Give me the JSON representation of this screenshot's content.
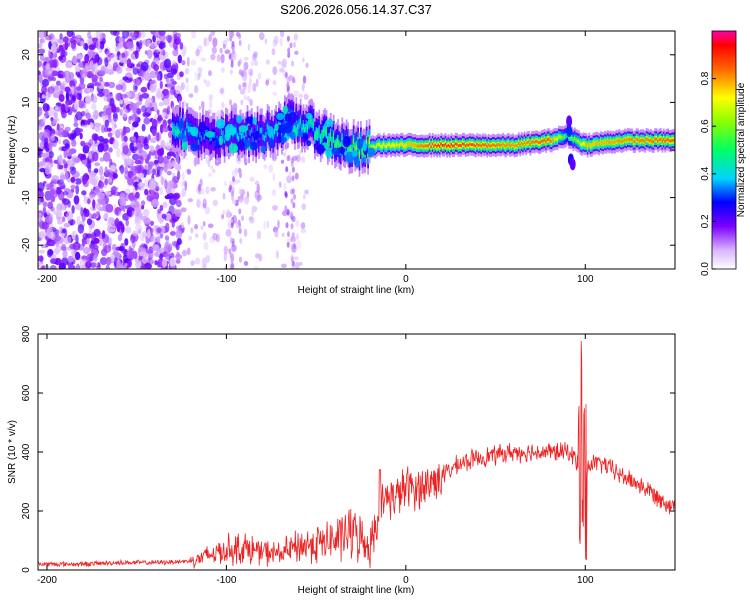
{
  "title": "S206.2026.056.14.37.C37",
  "chart_data": [
    {
      "type": "heatmap",
      "name": "spectrogram",
      "xlabel": "Height of straight line (km)",
      "ylabel": "Frequency (Hz)",
      "xlim": [
        -205,
        150
      ],
      "ylim": [
        -25,
        25
      ],
      "xticks": [
        -200,
        -100,
        0,
        100
      ],
      "xtick_labels": [
        "-200",
        "-100",
        "0",
        "100"
      ],
      "yticks": [
        -20,
        -10,
        0,
        10,
        20
      ],
      "ytick_labels": [
        "-20",
        "-10",
        "0",
        "10",
        "20"
      ],
      "colorbar": {
        "label": "Normalized spectral amplitude",
        "range": [
          0,
          1
        ],
        "ticks": [
          0.0,
          0.2,
          0.4,
          0.6,
          0.8
        ],
        "tick_labels": [
          "0.0",
          "0.2",
          "0.4",
          "0.6",
          "0.8"
        ]
      },
      "ridge": {
        "description_points_x": [
          -128,
          -115,
          -105,
          -95,
          -85,
          -75,
          -65,
          -55,
          -45,
          -35,
          -25,
          -15,
          0,
          20,
          40,
          60,
          80,
          90,
          100,
          120,
          150
        ],
        "frequency_hz": [
          5,
          3,
          2,
          4,
          3,
          4,
          6,
          5,
          3,
          1,
          0,
          1,
          1,
          1,
          1,
          1,
          2,
          3,
          1,
          2,
          2
        ],
        "peak_amplitude": [
          0.45,
          0.35,
          0.35,
          0.4,
          0.35,
          0.4,
          0.4,
          0.45,
          0.5,
          0.55,
          0.6,
          0.7,
          0.75,
          0.9,
          0.85,
          0.8,
          0.85,
          0.5,
          0.75,
          0.8,
          0.85
        ]
      }
    },
    {
      "type": "line",
      "name": "snr",
      "xlabel": "Height of straight line (km)",
      "ylabel": "SNR (10 * v/v)",
      "xlim": [
        -205,
        150
      ],
      "ylim": [
        0,
        800
      ],
      "xticks": [
        -200,
        -100,
        0,
        100
      ],
      "xtick_labels": [
        "-200",
        "-100",
        "0",
        "100"
      ],
      "yticks": [
        0,
        200,
        400,
        600,
        800
      ],
      "ytick_labels": [
        "0",
        "200",
        "400",
        "600",
        "800"
      ],
      "series": [
        {
          "name": "SNR",
          "color": "#ee2222",
          "x": [
            -205,
            -180,
            -160,
            -140,
            -120,
            -110,
            -100,
            -90,
            -80,
            -70,
            -60,
            -50,
            -40,
            -30,
            -20,
            -15,
            -10,
            -5,
            0,
            10,
            20,
            30,
            40,
            50,
            60,
            70,
            80,
            90,
            95,
            98,
            100,
            102,
            105,
            110,
            120,
            130,
            140,
            150
          ],
          "values": [
            20,
            20,
            25,
            25,
            30,
            50,
            70,
            75,
            60,
            55,
            80,
            90,
            100,
            130,
            80,
            200,
            250,
            250,
            280,
            280,
            320,
            360,
            380,
            390,
            400,
            400,
            400,
            400,
            380,
            250,
            300,
            360,
            360,
            360,
            320,
            290,
            250,
            210
          ]
        }
      ]
    }
  ]
}
